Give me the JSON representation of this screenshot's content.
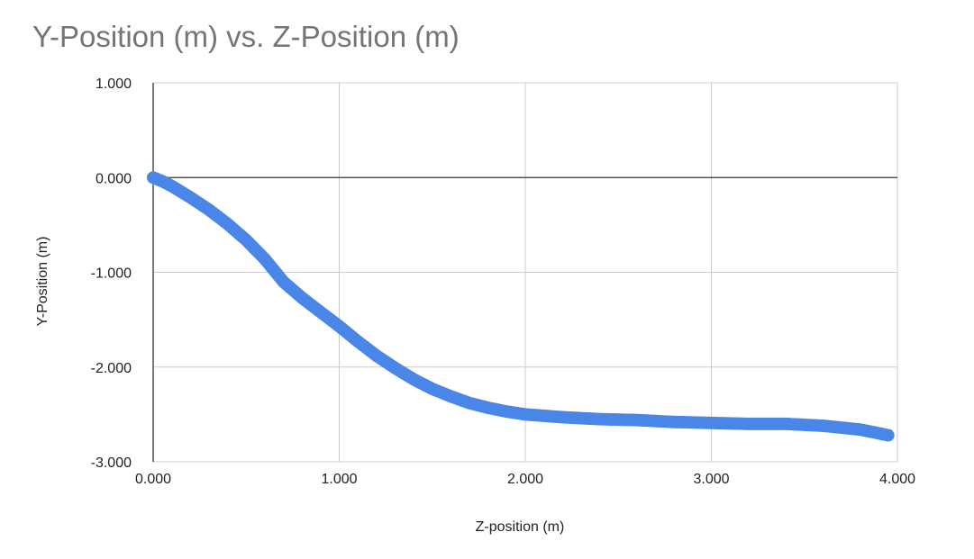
{
  "chart_data": {
    "type": "scatter",
    "title": "Y-Position (m) vs. Z-Position (m)",
    "xlabel": "Z-position (m)",
    "ylabel": "Y-Position (m)",
    "xlim": [
      0,
      4
    ],
    "ylim": [
      -3,
      1
    ],
    "x_ticks": [
      0,
      1,
      2,
      3,
      4
    ],
    "x_tick_labels": [
      "0.000",
      "1.000",
      "2.000",
      "3.000",
      "4.000"
    ],
    "y_ticks": [
      1,
      0,
      -1,
      -2,
      -3
    ],
    "y_tick_labels": [
      "1.000",
      "0.000",
      "-1.000",
      "-2.000",
      "-3.000"
    ],
    "grid": true,
    "legend": "none",
    "marker_color": "#4a86e8",
    "series": [
      {
        "x": [
          0,
          0.05,
          0.1,
          0.2,
          0.3,
          0.4,
          0.5,
          0.6,
          0.7,
          0.8,
          0.9,
          1.0,
          1.1,
          1.2,
          1.3,
          1.4,
          1.5,
          1.6,
          1.7,
          1.8,
          1.9,
          2.0,
          2.2,
          2.4,
          2.6,
          2.8,
          3.0,
          3.2,
          3.4,
          3.6,
          3.8,
          3.95
        ],
        "y": [
          0,
          -0.04,
          -0.09,
          -0.21,
          -0.34,
          -0.49,
          -0.66,
          -0.86,
          -1.1,
          -1.27,
          -1.42,
          -1.57,
          -1.73,
          -1.88,
          -2.01,
          -2.13,
          -2.23,
          -2.31,
          -2.38,
          -2.43,
          -2.47,
          -2.5,
          -2.53,
          -2.55,
          -2.56,
          -2.58,
          -2.59,
          -2.6,
          -2.6,
          -2.62,
          -2.66,
          -2.72
        ]
      }
    ]
  }
}
